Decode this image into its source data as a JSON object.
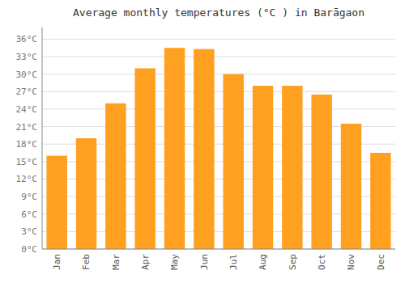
{
  "chart_data": {
    "type": "bar",
    "title": "Average monthly temperatures (°C ) in Barāgaon",
    "categories": [
      "Jan",
      "Feb",
      "Mar",
      "Apr",
      "May",
      "Jun",
      "Jul",
      "Aug",
      "Sep",
      "Oct",
      "Nov",
      "Dec"
    ],
    "values": [
      16.0,
      19.0,
      25.0,
      31.0,
      34.5,
      34.3,
      30.0,
      28.0,
      28.0,
      26.5,
      21.5,
      16.5
    ],
    "color": "#FFA020",
    "ylim": [
      0,
      38
    ],
    "yticks": [
      {
        "value": 0,
        "label": "0°C"
      },
      {
        "value": 3,
        "label": "3°C"
      },
      {
        "value": 6,
        "label": "6°C"
      },
      {
        "value": 9,
        "label": "9°C"
      },
      {
        "value": 12,
        "label": "12°C"
      },
      {
        "value": 15,
        "label": "15°C"
      },
      {
        "value": 18,
        "label": "18°C"
      },
      {
        "value": 21,
        "label": "21°C"
      },
      {
        "value": 24,
        "label": "24°C"
      },
      {
        "value": 27,
        "label": "27°C"
      },
      {
        "value": 30,
        "label": "30°C"
      },
      {
        "value": 33,
        "label": "33°C"
      },
      {
        "value": 36,
        "label": "36°C"
      }
    ],
    "grid": true
  }
}
